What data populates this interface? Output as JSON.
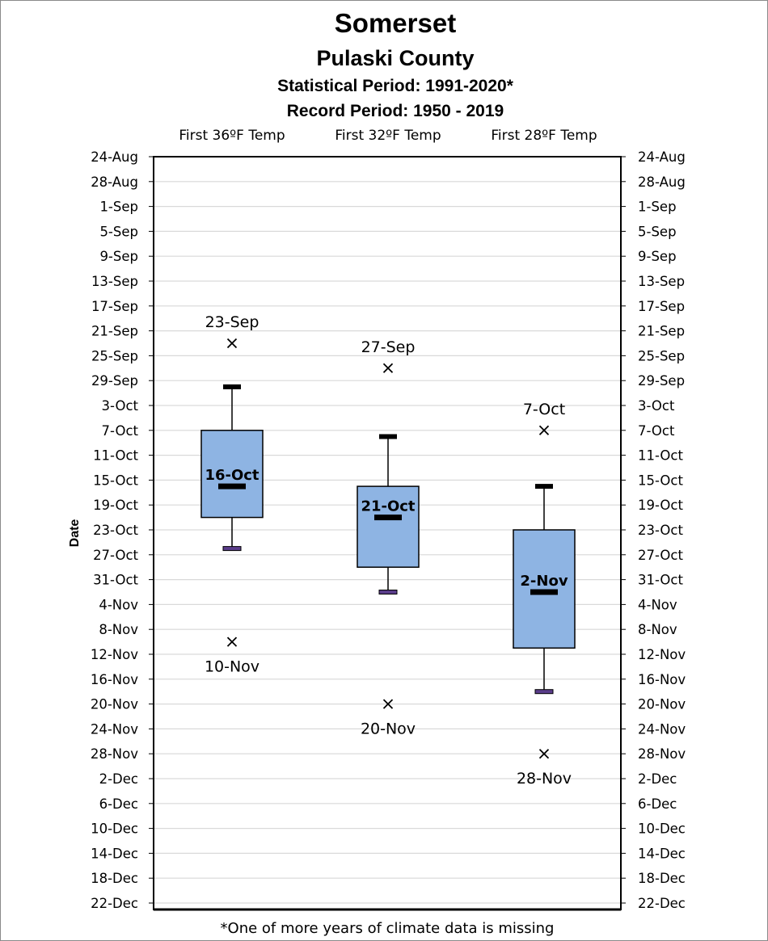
{
  "chart_data": {
    "type": "box",
    "title": "Somerset",
    "subtitle": "Pulaski County",
    "statistical_period": "Statistical Period: 1991-2020*",
    "record_period": "Record Period: 1950 - 2019",
    "ylabel": "Date",
    "footnote": "*One of more years of climate data is missing",
    "grid": true,
    "y_ticks": [
      "24-Aug",
      "28-Aug",
      "1-Sep",
      "5-Sep",
      "9-Sep",
      "13-Sep",
      "17-Sep",
      "21-Sep",
      "25-Sep",
      "29-Sep",
      "3-Oct",
      "7-Oct",
      "11-Oct",
      "15-Oct",
      "19-Oct",
      "23-Oct",
      "27-Oct",
      "31-Oct",
      "4-Nov",
      "8-Nov",
      "12-Nov",
      "16-Nov",
      "20-Nov",
      "24-Nov",
      "28-Nov",
      "2-Dec",
      "6-Dec",
      "10-Dec",
      "14-Dec",
      "18-Dec",
      "22-Dec"
    ],
    "y_axis": {
      "start": "24-Aug",
      "end": "22-Dec",
      "start_day": 236,
      "end_day": 356,
      "tick_step_days": 4,
      "reversed": true
    },
    "categories": [
      "First 36ºF Temp",
      "First 32ºF Temp",
      "First 28ºF Temp"
    ],
    "boxes": [
      {
        "category": "First 36ºF Temp",
        "record_earliest": "23-Sep",
        "whisker_low": "30-Sep",
        "q1": "7-Oct",
        "median": "16-Oct",
        "q3": "21-Oct",
        "whisker_high": "26-Oct",
        "record_latest": "10-Nov",
        "record_earliest_day": 266,
        "whisker_low_day": 273,
        "q1_day": 280,
        "median_day": 289,
        "q3_day": 294,
        "whisker_high_day": 299,
        "record_latest_day": 314
      },
      {
        "category": "First 32ºF Temp",
        "record_earliest": "27-Sep",
        "whisker_low": "8-Oct",
        "q1": "16-Oct",
        "median": "21-Oct",
        "q3": "29-Oct",
        "whisker_high": "2-Nov",
        "record_latest": "20-Nov",
        "record_earliest_day": 270,
        "whisker_low_day": 281,
        "q1_day": 289,
        "median_day": 294,
        "q3_day": 302,
        "whisker_high_day": 306,
        "record_latest_day": 324
      },
      {
        "category": "First 28ºF Temp",
        "record_earliest": "7-Oct",
        "whisker_low": "16-Oct",
        "q1": "23-Oct",
        "median": "2-Nov",
        "q3": "11-Nov",
        "whisker_high": "18-Nov",
        "record_latest": "28-Nov",
        "record_earliest_day": 280,
        "whisker_low_day": 289,
        "q1_day": 296,
        "median_day": 306,
        "q3_day": 315,
        "whisker_high_day": 322,
        "record_latest_day": 332
      }
    ],
    "colors": {
      "box_fill": "#8eb4e3",
      "box_stroke": "#000000",
      "median": "#000000",
      "whisker_end_low": "#5a3d8a",
      "grid": "#d9d9d9"
    }
  }
}
